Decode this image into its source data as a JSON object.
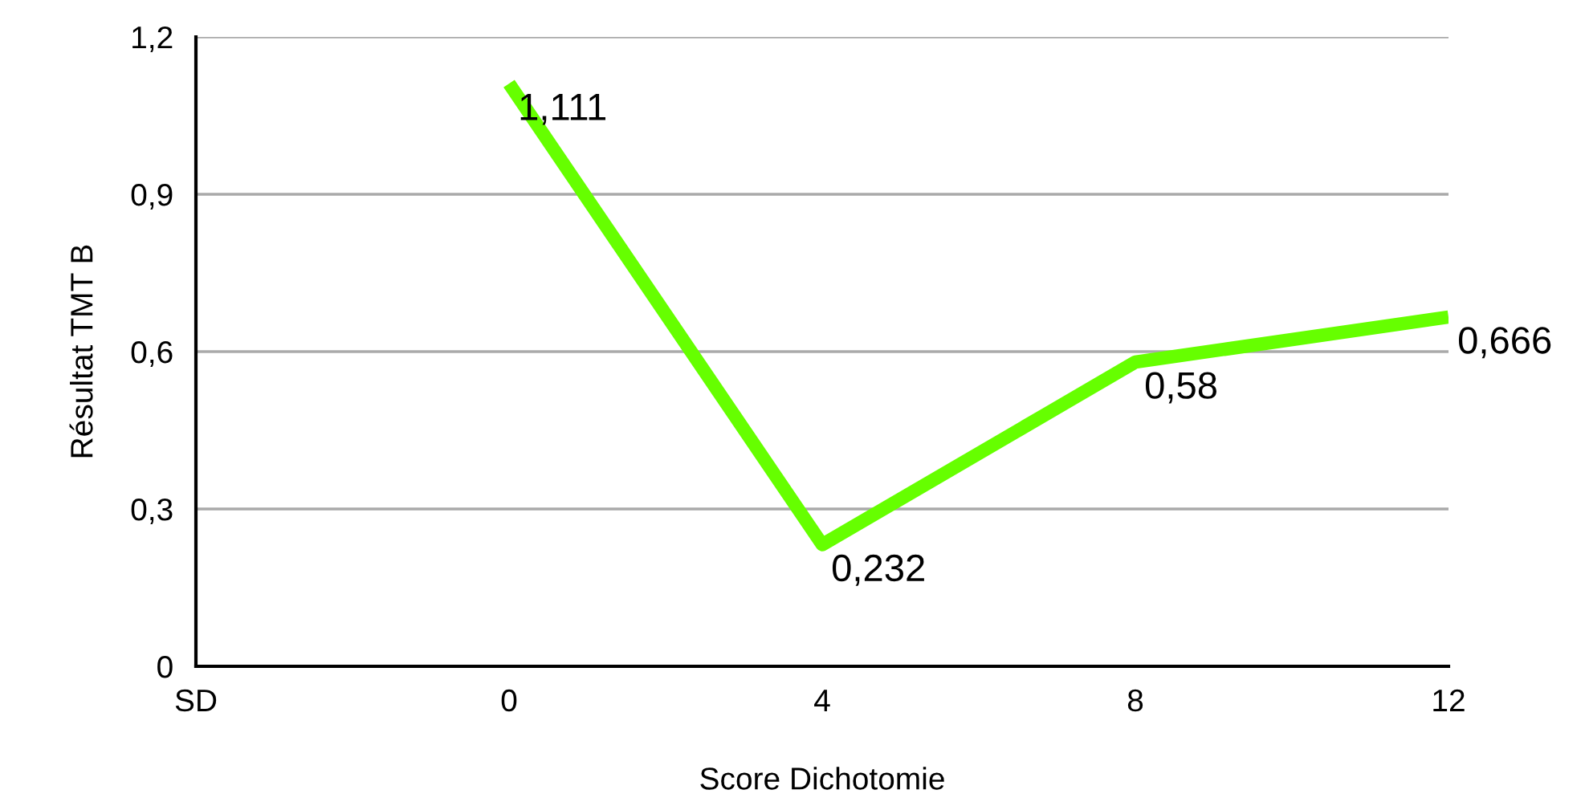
{
  "chart_data": {
    "type": "line",
    "xlabel": "Score Dichotomie",
    "ylabel": "Résultat TMT B",
    "categories": [
      "SD",
      "0",
      "4",
      "8",
      "12"
    ],
    "series": [
      {
        "color": "#66ff00",
        "values": [
          null,
          1.111,
          0.232,
          0.58,
          0.666
        ],
        "value_labels": [
          null,
          "1,111",
          "0,232",
          "0,58",
          "0,666"
        ]
      }
    ],
    "ylim": [
      0,
      1.2
    ],
    "yticks": [
      0,
      {
        "value": 0.3,
        "label": "0,3"
      },
      {
        "value": 0.6,
        "label": "0,6"
      },
      {
        "value": 0.9,
        "label": "0,9"
      },
      {
        "value": 1.2,
        "label": "1,2"
      }
    ],
    "grid": "y",
    "legend": false,
    "marker": "none",
    "line_style": "solid"
  }
}
